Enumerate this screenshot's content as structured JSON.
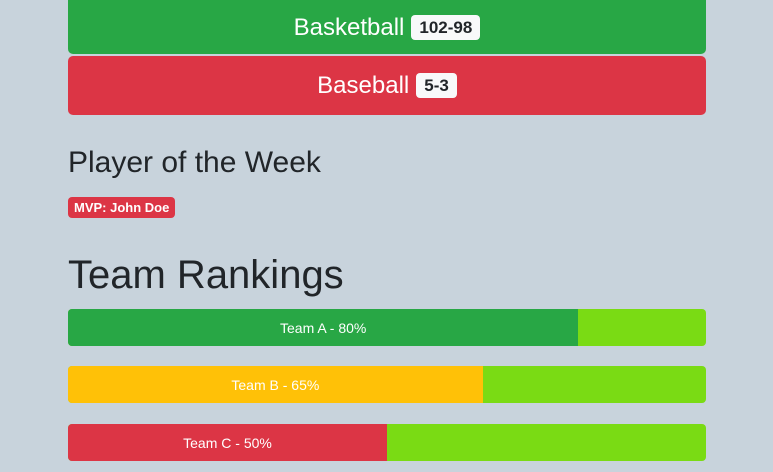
{
  "scores": [
    {
      "sport": "Basketball",
      "score": "102-98",
      "color": "#28a745"
    },
    {
      "sport": "Baseball",
      "score": "5-3",
      "color": "#dc3545"
    }
  ],
  "player_of_week": {
    "title": "Player of the Week",
    "mvp_label": "MVP: John Doe"
  },
  "rankings": {
    "title": "Team Rankings",
    "teams": [
      {
        "label": "Team A - 80%",
        "percent": 80,
        "color": "#28a745"
      },
      {
        "label": "Team B - 65%",
        "percent": 65,
        "color": "#ffc107"
      },
      {
        "label": "Team C - 50%",
        "percent": 50,
        "color": "#dc3545"
      }
    ],
    "track_color": "#7adb14"
  }
}
